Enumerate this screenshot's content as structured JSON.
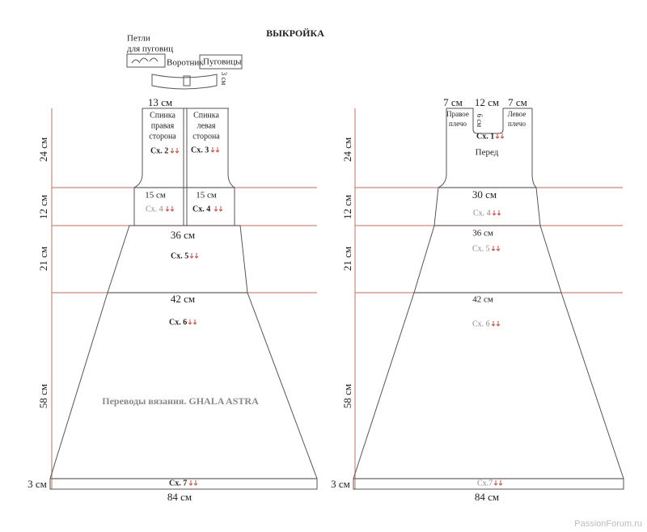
{
  "title": "ВЫКРОЙКА",
  "collar": {
    "buttonholes": [
      "Петли",
      "для пуговиц"
    ],
    "collar": "Воротник",
    "buttons": "Пуговицы",
    "height": "3 см"
  },
  "back": {
    "top_width": "13 см",
    "right_side": [
      "Спинка",
      "правая",
      "сторона"
    ],
    "left_side": [
      "Спинка",
      "левая",
      "сторона"
    ],
    "scheme_right": "Сх. 2",
    "scheme_left": "Сх. 3",
    "band_width_right": "15 см",
    "band_width_left": "15 см",
    "scheme_4_right": "Сх. 4",
    "scheme_4_left": "Сх. 4",
    "width_36": "36 см",
    "scheme_5": "Сх. 5",
    "width_42": "42 см",
    "scheme_6": "Сх. 6",
    "credit": "Переводы вязания. GHALA ASTRA",
    "scheme_7": "Сх. 7",
    "bottom_width": "84 см",
    "heights": [
      "24 см",
      "12 см",
      "21 см",
      "58 см",
      "3 см"
    ]
  },
  "front": {
    "shoulder_right": "7 см",
    "neck": "12 см",
    "shoulder_left": "7 см",
    "right_shoulder": [
      "Правое",
      "плечо"
    ],
    "neck_depth": "6 см",
    "left_shoulder": [
      "Левое",
      "плечо"
    ],
    "scheme_1": "Сх. 1",
    "label": "Перед",
    "width_30": "30 см",
    "scheme_4": "Сх. 4",
    "width_36": "36 см",
    "scheme_5": "Сх. 5",
    "width_42": "42 см",
    "scheme_6": "Сх. 6",
    "scheme_7": "Сх.7",
    "bottom_width": "84 см",
    "heights": [
      "24 см",
      "12 см",
      "21 см",
      "58 см",
      "3 см"
    ]
  },
  "watermark": "PassionForum.ru"
}
